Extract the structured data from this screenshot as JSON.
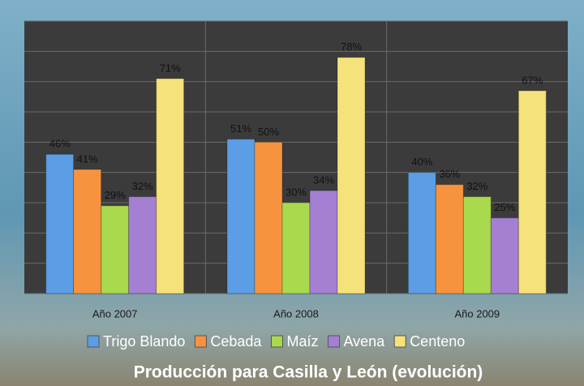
{
  "chart_data": {
    "type": "bar",
    "title": "Producción para Casilla y León (evolución)",
    "categories": [
      "Año 2007",
      "Año 2008",
      "Año 2009"
    ],
    "series": [
      {
        "name": "Trigo Blando",
        "color": "#5b9ee6",
        "values": [
          46,
          51,
          40
        ],
        "value_labels": [
          "46%",
          "51%",
          "40%"
        ]
      },
      {
        "name": "Cebada",
        "color": "#f7933f",
        "values": [
          41,
          50,
          36
        ],
        "value_labels": [
          "41%",
          "50%",
          "36%"
        ]
      },
      {
        "name": "Maíz",
        "color": "#a9d94c",
        "values": [
          29,
          30,
          32
        ],
        "value_labels": [
          "29%",
          "30%",
          "32%"
        ]
      },
      {
        "name": "Avena",
        "color": "#a47fd2",
        "values": [
          32,
          34,
          25
        ],
        "value_labels": [
          "32%",
          "34%",
          "25%"
        ]
      },
      {
        "name": "Centeno",
        "color": "#f5e27a",
        "values": [
          71,
          78,
          67
        ],
        "value_labels": [
          "71%",
          "78%",
          "67%"
        ]
      }
    ],
    "ylim": [
      0,
      90
    ],
    "yticks": [
      0,
      10,
      20,
      30,
      40,
      50,
      60,
      70,
      80,
      90
    ],
    "grid": true,
    "tick_labels": false
  }
}
